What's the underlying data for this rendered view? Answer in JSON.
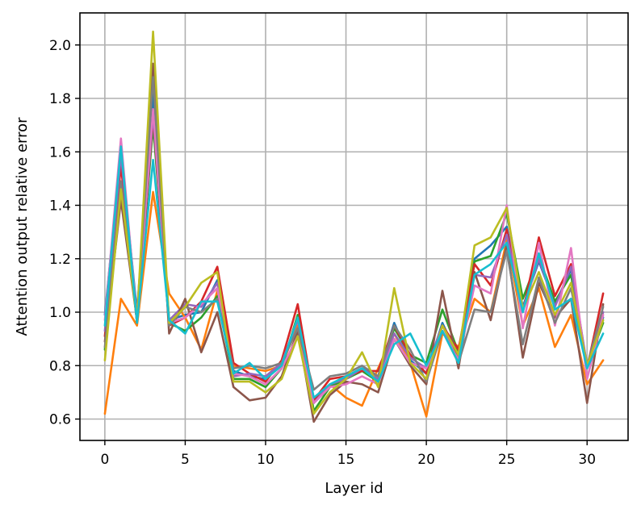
{
  "chart_data": {
    "type": "line",
    "xlabel": "Layer id",
    "ylabel": "Attention output relative error",
    "xlim": [
      -1.55,
      32.55
    ],
    "ylim": [
      0.52,
      2.12
    ],
    "xticks": [
      0,
      5,
      10,
      15,
      20,
      25,
      30
    ],
    "yticks": [
      0.6,
      0.8,
      1.0,
      1.2,
      1.4,
      1.6,
      1.8,
      2.0
    ],
    "ytick_labels": [
      "0.6",
      "0.8",
      "1.0",
      "1.2",
      "1.4",
      "1.6",
      "1.8",
      "2.0"
    ],
    "grid": true,
    "x": [
      0,
      1,
      2,
      3,
      4,
      5,
      6,
      7,
      8,
      9,
      10,
      11,
      12,
      13,
      14,
      15,
      16,
      17,
      18,
      19,
      20,
      21,
      22,
      23,
      24,
      25,
      26,
      27,
      28,
      29,
      30,
      31
    ],
    "series": [
      {
        "color": "#1f77b4",
        "values": [
          0.99,
          1.6,
          1.0,
          1.82,
          0.97,
          0.99,
          1.0,
          1.12,
          0.78,
          0.76,
          0.75,
          0.8,
          0.98,
          0.66,
          0.72,
          0.76,
          0.79,
          0.76,
          0.96,
          0.82,
          0.77,
          0.96,
          0.83,
          1.2,
          1.25,
          1.32,
          1.02,
          1.19,
          1.03,
          1.16,
          0.79,
          0.98
        ]
      },
      {
        "color": "#ff7f0e",
        "values": [
          0.62,
          1.05,
          0.95,
          1.45,
          1.07,
          0.98,
          0.86,
          1.08,
          0.8,
          0.79,
          0.78,
          0.8,
          0.95,
          0.67,
          0.73,
          0.68,
          0.65,
          0.79,
          0.92,
          0.81,
          0.61,
          0.92,
          0.87,
          1.05,
          1.0,
          1.27,
          0.95,
          1.09,
          0.87,
          0.99,
          0.73,
          0.82
        ]
      },
      {
        "color": "#2ca02c",
        "values": [
          0.86,
          1.58,
          0.96,
          1.7,
          0.96,
          0.93,
          0.98,
          1.06,
          0.75,
          0.75,
          0.72,
          0.79,
          0.99,
          0.63,
          0.72,
          0.75,
          0.78,
          0.74,
          0.94,
          0.84,
          0.81,
          1.01,
          0.85,
          1.19,
          1.21,
          1.37,
          1.05,
          1.21,
          1.04,
          1.14,
          0.8,
          0.96
        ]
      },
      {
        "color": "#d62728",
        "values": [
          0.91,
          1.55,
          0.96,
          1.73,
          0.95,
          0.98,
          1.04,
          1.17,
          0.81,
          0.77,
          0.74,
          0.82,
          1.03,
          0.67,
          0.75,
          0.76,
          0.78,
          0.78,
          0.95,
          0.84,
          0.77,
          0.95,
          0.86,
          1.18,
          1.1,
          1.31,
          1.0,
          1.28,
          1.06,
          1.18,
          0.79,
          1.07
        ]
      },
      {
        "color": "#9467bd",
        "values": [
          0.93,
          1.59,
          0.98,
          1.74,
          0.97,
          1.03,
          1.02,
          1.11,
          0.76,
          0.77,
          0.76,
          0.81,
          0.97,
          0.66,
          0.73,
          0.75,
          0.79,
          0.75,
          0.92,
          0.83,
          0.79,
          0.95,
          0.83,
          1.14,
          1.13,
          1.29,
          1.01,
          1.2,
          1.02,
          1.17,
          0.8,
          1.0
        ]
      },
      {
        "color": "#8c564b",
        "values": [
          0.89,
          1.42,
          0.97,
          1.93,
          0.92,
          1.05,
          0.85,
          1.0,
          0.72,
          0.67,
          0.68,
          0.76,
          0.93,
          0.59,
          0.69,
          0.74,
          0.73,
          0.7,
          0.9,
          0.8,
          0.73,
          1.08,
          0.79,
          1.15,
          0.97,
          1.25,
          0.83,
          1.11,
          0.98,
          1.05,
          0.66,
          1.03
        ]
      },
      {
        "color": "#e377c2",
        "values": [
          0.97,
          1.65,
          0.97,
          1.76,
          0.96,
          0.98,
          1.03,
          1.09,
          0.77,
          0.76,
          0.73,
          0.79,
          0.91,
          0.66,
          0.72,
          0.73,
          0.76,
          0.73,
          0.9,
          0.81,
          0.79,
          0.93,
          0.82,
          1.1,
          1.07,
          1.4,
          0.94,
          1.26,
          0.95,
          1.24,
          0.75,
          0.99
        ]
      },
      {
        "color": "#7f7f7f",
        "values": [
          0.87,
          1.49,
          0.98,
          1.88,
          0.95,
          1.02,
          1.0,
          1.05,
          0.79,
          0.8,
          0.79,
          0.81,
          0.94,
          0.71,
          0.76,
          0.77,
          0.8,
          0.76,
          0.95,
          0.86,
          0.74,
          0.93,
          0.81,
          1.01,
          1.0,
          1.23,
          0.88,
          1.13,
          0.96,
          1.09,
          0.8,
          1.02
        ]
      },
      {
        "color": "#bcbd22",
        "values": [
          0.82,
          1.46,
          0.97,
          2.05,
          0.96,
          1.02,
          1.11,
          1.15,
          0.74,
          0.74,
          0.7,
          0.75,
          0.91,
          0.62,
          0.7,
          0.75,
          0.85,
          0.72,
          1.09,
          0.81,
          0.75,
          0.95,
          0.84,
          1.25,
          1.28,
          1.39,
          1.01,
          1.15,
          0.99,
          1.11,
          0.8,
          0.97
        ]
      },
      {
        "color": "#17becf",
        "values": [
          0.95,
          1.62,
          0.96,
          1.57,
          0.97,
          0.92,
          1.04,
          1.04,
          0.77,
          0.81,
          0.75,
          0.8,
          0.98,
          0.68,
          0.73,
          0.76,
          0.79,
          0.74,
          0.88,
          0.92,
          0.8,
          0.93,
          0.81,
          1.14,
          1.18,
          1.26,
          1.0,
          1.22,
          1.01,
          1.05,
          0.79,
          0.92
        ]
      }
    ]
  }
}
